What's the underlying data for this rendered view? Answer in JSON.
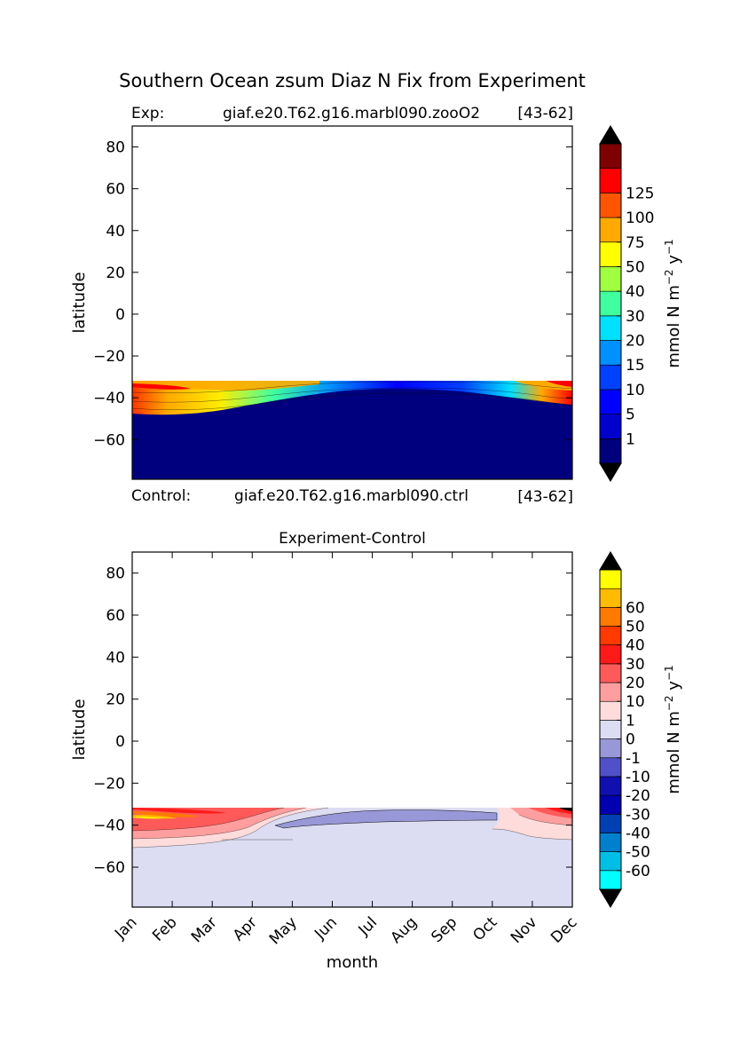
{
  "figure": {
    "title": "Southern Ocean zsum Diaz N Fix from Experiment"
  },
  "chart_data": [
    {
      "type": "heatmap",
      "subtitle_left": "Exp:",
      "subtitle_center": "giaf.e20.T62.g16.marbl090.zooO2",
      "subtitle_right": "[43-62]",
      "bottom_left": "Control:",
      "bottom_center": "giaf.e20.T62.g16.marbl090.ctrl",
      "bottom_right": "[43-62]",
      "xlabel": "",
      "ylabel": "latitude",
      "xlim": [
        0,
        11
      ],
      "ylim": [
        -79,
        90
      ],
      "yticks": [
        80,
        60,
        40,
        20,
        0,
        -20,
        -40,
        -60
      ],
      "data_ylim": [
        -79,
        -32
      ],
      "colorbar": {
        "label_main": "mmol N m",
        "label_exp1": "−2",
        "label_mid": " y",
        "label_exp2": "−1",
        "colors": [
          "#00007f",
          "#0000cd",
          "#0000ff",
          "#0040ff",
          "#0090ff",
          "#00e0ff",
          "#40ff9f",
          "#9fff40",
          "#ffff00",
          "#ffaa00",
          "#ff5500",
          "#ff0000",
          "#7f0000"
        ],
        "ticks": [
          "1",
          "5",
          "10",
          "15",
          "20",
          "30",
          "40",
          "50",
          "75",
          "100",
          "125"
        ],
        "extend_color": "#000000"
      }
    },
    {
      "type": "heatmap",
      "title": "Experiment-Control",
      "xlabel": "month",
      "ylabel": "latitude",
      "xlim": [
        0,
        11
      ],
      "ylim": [
        -79,
        90
      ],
      "yticks": [
        80,
        60,
        40,
        20,
        0,
        -20,
        -40,
        -60
      ],
      "xticks": [
        "Jan",
        "Feb",
        "Mar",
        "Apr",
        "May",
        "Jun",
        "Jul",
        "Aug",
        "Sep",
        "Oct",
        "Nov",
        "Dec"
      ],
      "data_ylim": [
        -79,
        -32
      ],
      "colorbar": {
        "label_main": "mmol N m",
        "label_exp1": "−2",
        "label_mid": " y",
        "label_exp2": "−1",
        "colors": [
          "#00ffff",
          "#00bfe6",
          "#0080cc",
          "#0040b3",
          "#0000b0",
          "#1010b0",
          "#5050c8",
          "#9898d8",
          "#dcdcf2",
          "#ffdcdc",
          "#ff9e9e",
          "#ff5a5a",
          "#ff1a1a",
          "#ff3a00",
          "#ff7a00",
          "#ffbb00",
          "#ffff00"
        ],
        "ticks": [
          "-60",
          "-50",
          "-40",
          "-30",
          "-20",
          "-10",
          "-1",
          "0",
          "1",
          "10",
          "20",
          "30",
          "40",
          "50",
          "60"
        ],
        "extend_color": "#000000"
      }
    }
  ]
}
